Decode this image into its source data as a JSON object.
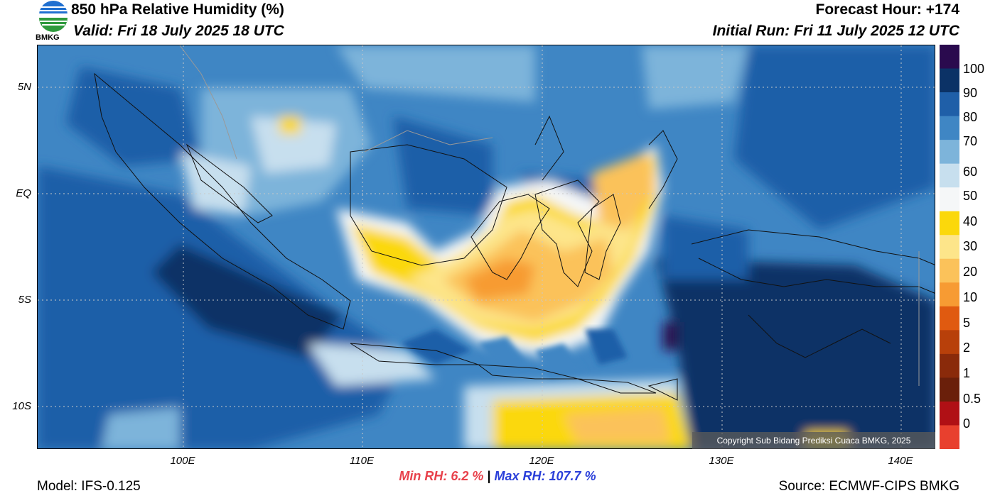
{
  "header": {
    "title": "850 hPa Relative Humidity (%)",
    "valid": "Valid: Fri 18 July 2025 18 UTC",
    "forecast_hour": "Forecast Hour: +174",
    "initial_run": "Initial Run: Fri 11 July 2025 12 UTC",
    "logo_text": "BMKG"
  },
  "map": {
    "lat_labels": [
      "5N",
      "EQ",
      "5S",
      "10S"
    ],
    "lon_labels": [
      "100E",
      "110E",
      "120E",
      "130E",
      "140E"
    ],
    "copyright": "Copyright Sub Bidang Prediksi Cuaca BMKG, 2025"
  },
  "colorbar": {
    "labels": [
      "100",
      "90",
      "80",
      "70",
      "60",
      "50",
      "40",
      "30",
      "20",
      "10",
      "5",
      "2",
      "1",
      "0.5",
      "0"
    ],
    "colors": [
      "#2a0a4e",
      "#0b3266",
      "#1f5fa8",
      "#3f86c4",
      "#7db4da",
      "#c7dfee",
      "#f5f7f8",
      "#fbd80b",
      "#fde58a",
      "#fbc25a",
      "#f79b33",
      "#e05a10",
      "#b8400a",
      "#8a2a0a",
      "#6a1f0a",
      "#b01015",
      "#e8402e"
    ]
  },
  "stats": {
    "min_rh": "Min RH:   6.2 %",
    "separator": "|",
    "max_rh": "Max RH: 107.7 %"
  },
  "footer": {
    "model": "Model: IFS-0.125",
    "source": "Source: ECMWF-CIPS BMKG"
  }
}
